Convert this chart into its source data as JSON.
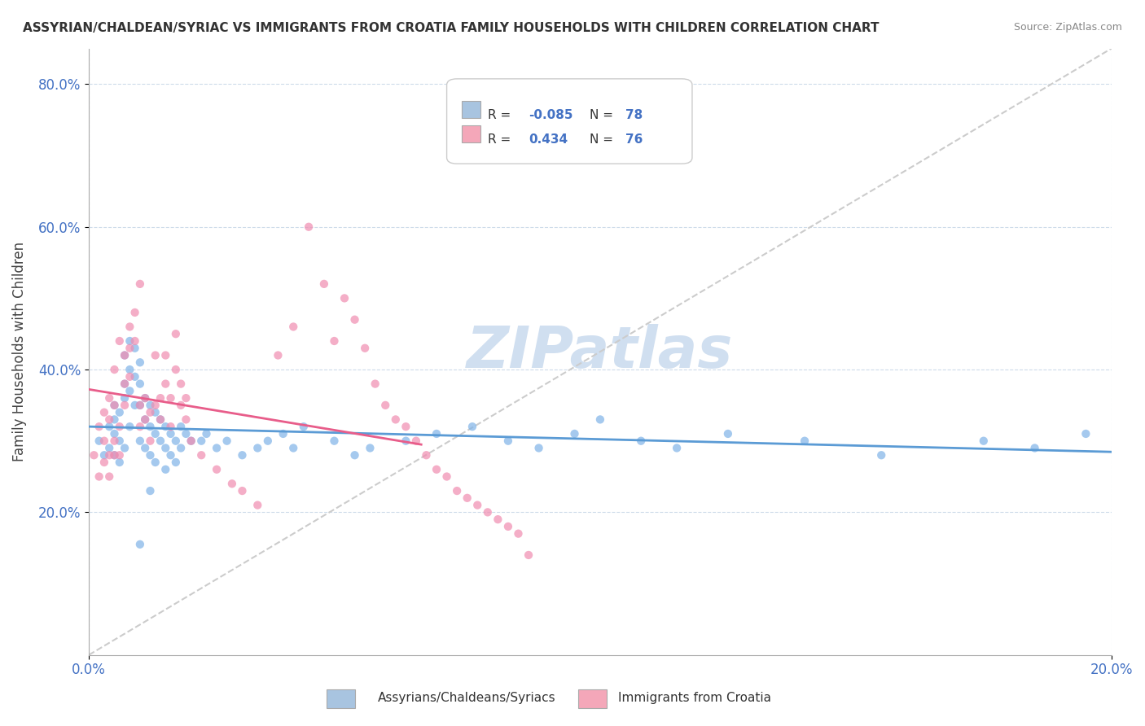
{
  "title": "ASSYRIAN/CHALDEAN/SYRIAC VS IMMIGRANTS FROM CROATIA FAMILY HOUSEHOLDS WITH CHILDREN CORRELATION CHART",
  "source": "Source: ZipAtlas.com",
  "xlabel": "",
  "ylabel": "Family Households with Children",
  "xlim": [
    0.0,
    0.2
  ],
  "ylim": [
    0.0,
    0.85
  ],
  "xtick_labels": [
    "0.0%",
    "20.0%"
  ],
  "ytick_labels": [
    "20.0%",
    "40.0%",
    "60.0%",
    "80.0%"
  ],
  "legend1_color": "#a8c4e0",
  "legend2_color": "#f4a7b9",
  "legend1_label": "Assyrians/Chaldeans/Syriacs",
  "legend2_label": "Immigrants from Croatia",
  "R1": -0.085,
  "N1": 78,
  "R2": 0.434,
  "N2": 76,
  "scatter1_color": "#7fb3e8",
  "scatter2_color": "#f08cb0",
  "line1_color": "#5b9bd5",
  "line2_color": "#e85d8a",
  "diag_color": "#cccccc",
  "watermark_color": "#d0dff0",
  "background_color": "#ffffff",
  "grid_color": "#c8d8e8",
  "scatter1_x": [
    0.002,
    0.003,
    0.004,
    0.004,
    0.005,
    0.005,
    0.005,
    0.005,
    0.006,
    0.006,
    0.006,
    0.007,
    0.007,
    0.007,
    0.007,
    0.008,
    0.008,
    0.008,
    0.008,
    0.009,
    0.009,
    0.009,
    0.01,
    0.01,
    0.01,
    0.01,
    0.011,
    0.011,
    0.011,
    0.012,
    0.012,
    0.012,
    0.013,
    0.013,
    0.013,
    0.014,
    0.014,
    0.015,
    0.015,
    0.015,
    0.016,
    0.016,
    0.017,
    0.017,
    0.018,
    0.018,
    0.019,
    0.02,
    0.022,
    0.023,
    0.025,
    0.027,
    0.03,
    0.033,
    0.035,
    0.038,
    0.04,
    0.042,
    0.048,
    0.052,
    0.055,
    0.062,
    0.068,
    0.075,
    0.082,
    0.088,
    0.095,
    0.1,
    0.108,
    0.115,
    0.125,
    0.14,
    0.155,
    0.175,
    0.185,
    0.195,
    0.01,
    0.012
  ],
  "scatter1_y": [
    0.3,
    0.28,
    0.32,
    0.29,
    0.33,
    0.31,
    0.28,
    0.35,
    0.3,
    0.27,
    0.34,
    0.42,
    0.38,
    0.36,
    0.29,
    0.44,
    0.4,
    0.37,
    0.32,
    0.43,
    0.39,
    0.35,
    0.41,
    0.38,
    0.35,
    0.3,
    0.36,
    0.33,
    0.29,
    0.35,
    0.32,
    0.28,
    0.34,
    0.31,
    0.27,
    0.33,
    0.3,
    0.32,
    0.29,
    0.26,
    0.31,
    0.28,
    0.3,
    0.27,
    0.32,
    0.29,
    0.31,
    0.3,
    0.3,
    0.31,
    0.29,
    0.3,
    0.28,
    0.29,
    0.3,
    0.31,
    0.29,
    0.32,
    0.3,
    0.28,
    0.29,
    0.3,
    0.31,
    0.32,
    0.3,
    0.29,
    0.31,
    0.33,
    0.3,
    0.29,
    0.31,
    0.3,
    0.28,
    0.3,
    0.29,
    0.31,
    0.155,
    0.23
  ],
  "scatter2_x": [
    0.001,
    0.002,
    0.002,
    0.003,
    0.003,
    0.003,
    0.004,
    0.004,
    0.004,
    0.004,
    0.005,
    0.005,
    0.005,
    0.005,
    0.006,
    0.006,
    0.006,
    0.007,
    0.007,
    0.007,
    0.008,
    0.008,
    0.008,
    0.009,
    0.009,
    0.01,
    0.01,
    0.01,
    0.011,
    0.011,
    0.012,
    0.012,
    0.013,
    0.013,
    0.014,
    0.014,
    0.015,
    0.015,
    0.016,
    0.016,
    0.017,
    0.017,
    0.018,
    0.018,
    0.019,
    0.019,
    0.02,
    0.022,
    0.025,
    0.028,
    0.03,
    0.033,
    0.037,
    0.04,
    0.043,
    0.046,
    0.048,
    0.05,
    0.052,
    0.054,
    0.056,
    0.058,
    0.06,
    0.062,
    0.064,
    0.066,
    0.068,
    0.07,
    0.072,
    0.074,
    0.076,
    0.078,
    0.08,
    0.082,
    0.084,
    0.086
  ],
  "scatter2_y": [
    0.28,
    0.25,
    0.32,
    0.27,
    0.3,
    0.34,
    0.28,
    0.25,
    0.36,
    0.33,
    0.3,
    0.28,
    0.4,
    0.35,
    0.32,
    0.28,
    0.44,
    0.38,
    0.35,
    0.42,
    0.46,
    0.43,
    0.39,
    0.48,
    0.44,
    0.35,
    0.32,
    0.52,
    0.36,
    0.33,
    0.34,
    0.3,
    0.35,
    0.42,
    0.36,
    0.33,
    0.38,
    0.42,
    0.36,
    0.32,
    0.4,
    0.45,
    0.38,
    0.35,
    0.36,
    0.33,
    0.3,
    0.28,
    0.26,
    0.24,
    0.23,
    0.21,
    0.42,
    0.46,
    0.6,
    0.52,
    0.44,
    0.5,
    0.47,
    0.43,
    0.38,
    0.35,
    0.33,
    0.32,
    0.3,
    0.28,
    0.26,
    0.25,
    0.23,
    0.22,
    0.21,
    0.2,
    0.19,
    0.18,
    0.17,
    0.14
  ]
}
